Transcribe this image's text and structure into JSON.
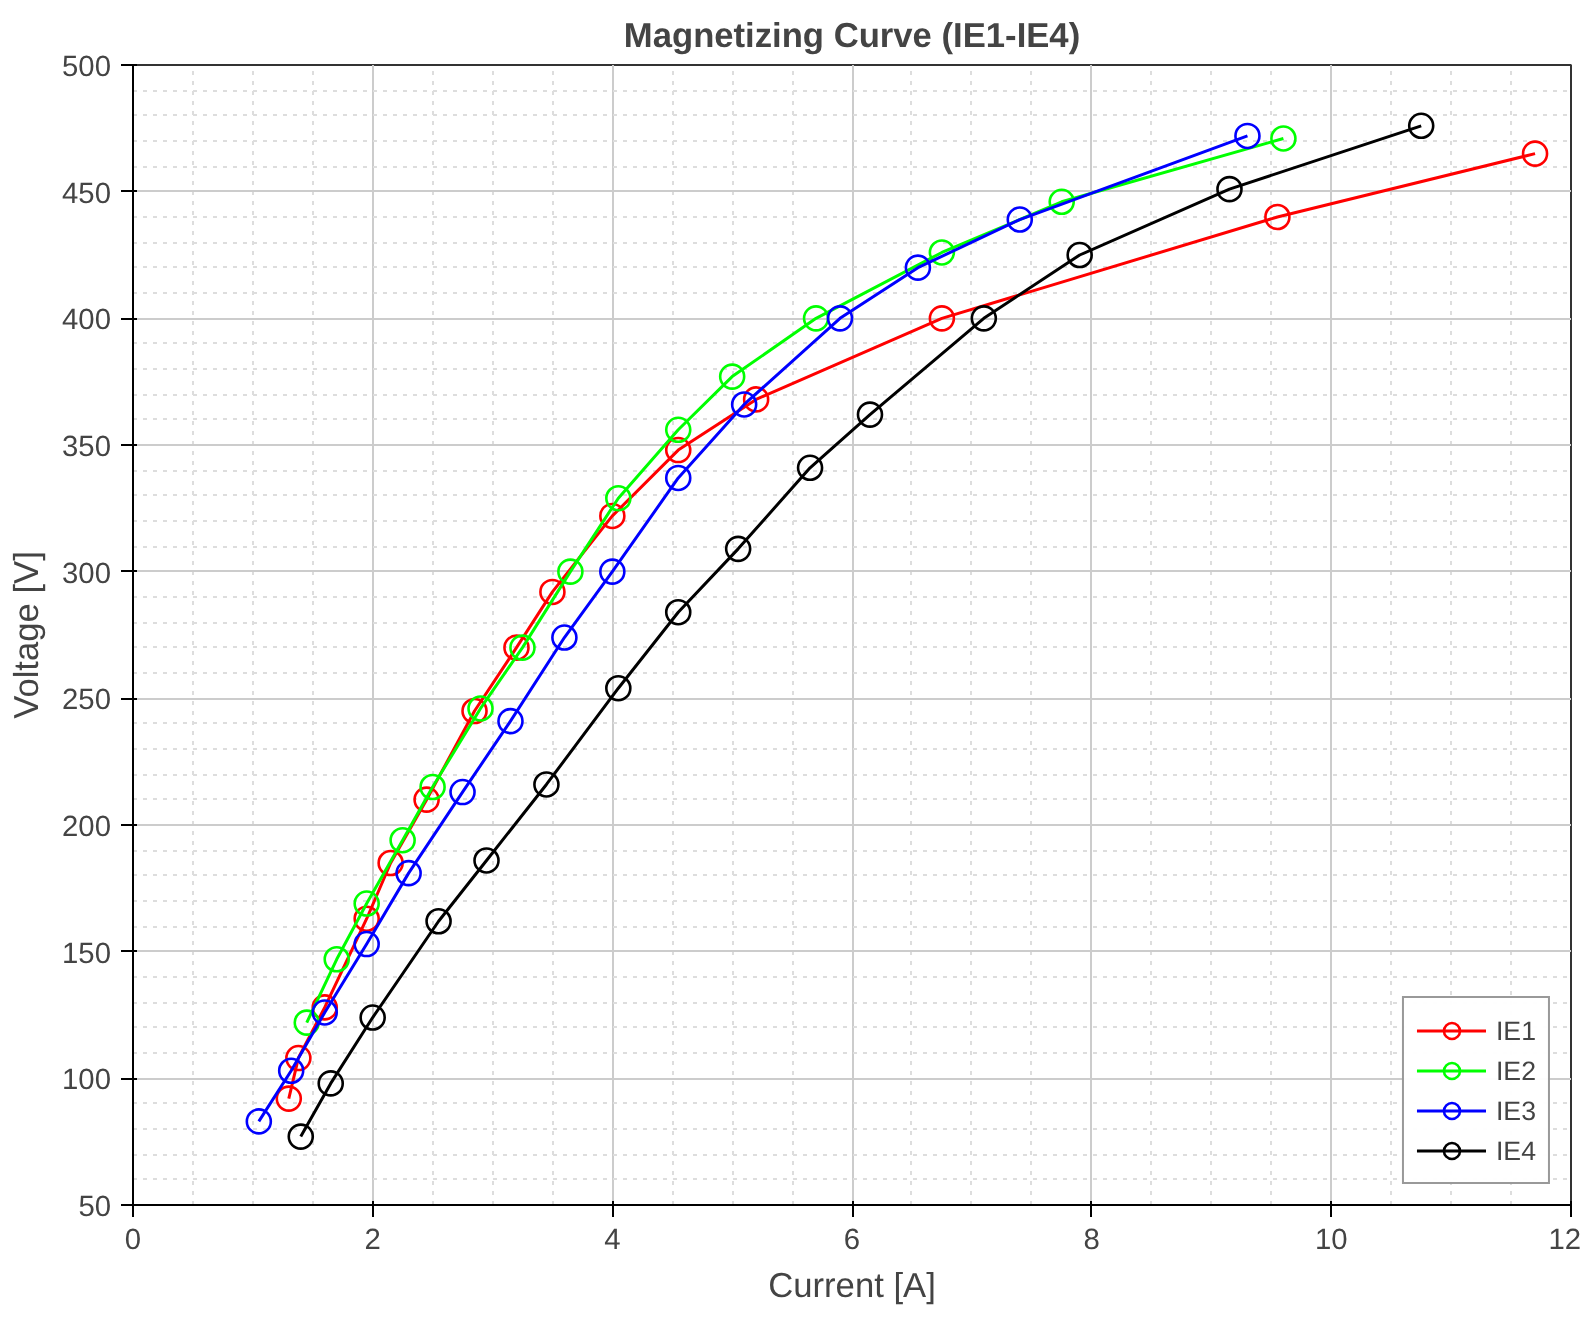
{
  "chart_data": {
    "type": "line",
    "title": "Magnetizing Curve (IE1-IE4)",
    "xlabel": "Current [A]",
    "ylabel": "Voltage [V]",
    "xlim": [
      0,
      12
    ],
    "ylim": [
      50,
      500
    ],
    "xticks": [
      0,
      2,
      4,
      6,
      8,
      10,
      12
    ],
    "yticks": [
      50,
      100,
      150,
      200,
      250,
      300,
      350,
      400,
      450,
      500
    ],
    "grid": true,
    "legend": "bottom right",
    "marker": "circle",
    "line_style": "solid",
    "series": [
      {
        "name": "IE1",
        "color": "#ff0000",
        "x": [
          1.3,
          1.38,
          1.6,
          1.95,
          2.15,
          2.45,
          2.85,
          3.2,
          3.5,
          4.0,
          4.55,
          5.2,
          6.75,
          9.55,
          11.7
        ],
        "values": [
          92,
          108,
          128,
          163,
          185,
          210,
          245,
          270,
          292,
          322,
          348,
          368,
          400,
          440,
          465
        ]
      },
      {
        "name": "IE2",
        "color": "#00ff00",
        "x": [
          1.45,
          1.7,
          1.95,
          2.25,
          2.5,
          2.9,
          3.25,
          3.65,
          4.05,
          4.55,
          5.0,
          5.7,
          6.75,
          7.75,
          9.6
        ],
        "values": [
          122,
          147,
          169,
          194,
          215,
          246,
          270,
          300,
          329,
          356,
          377,
          400,
          426,
          446,
          471
        ]
      },
      {
        "name": "IE3",
        "color": "#0000ff",
        "x": [
          1.05,
          1.32,
          1.6,
          1.95,
          2.3,
          2.75,
          3.15,
          3.6,
          4.0,
          4.55,
          5.1,
          5.9,
          6.55,
          7.4,
          9.3
        ],
        "values": [
          83,
          103,
          126,
          153,
          181,
          213,
          241,
          274,
          300,
          337,
          366,
          400,
          420,
          439,
          472
        ]
      },
      {
        "name": "IE4",
        "color": "#000000",
        "x": [
          1.4,
          1.65,
          2.0,
          2.55,
          2.95,
          3.45,
          4.05,
          4.55,
          5.05,
          5.65,
          6.15,
          7.1,
          7.9,
          9.15,
          10.75
        ],
        "values": [
          77,
          98,
          124,
          162,
          186,
          216,
          254,
          284,
          309,
          341,
          362,
          400,
          425,
          451,
          476
        ]
      }
    ]
  }
}
